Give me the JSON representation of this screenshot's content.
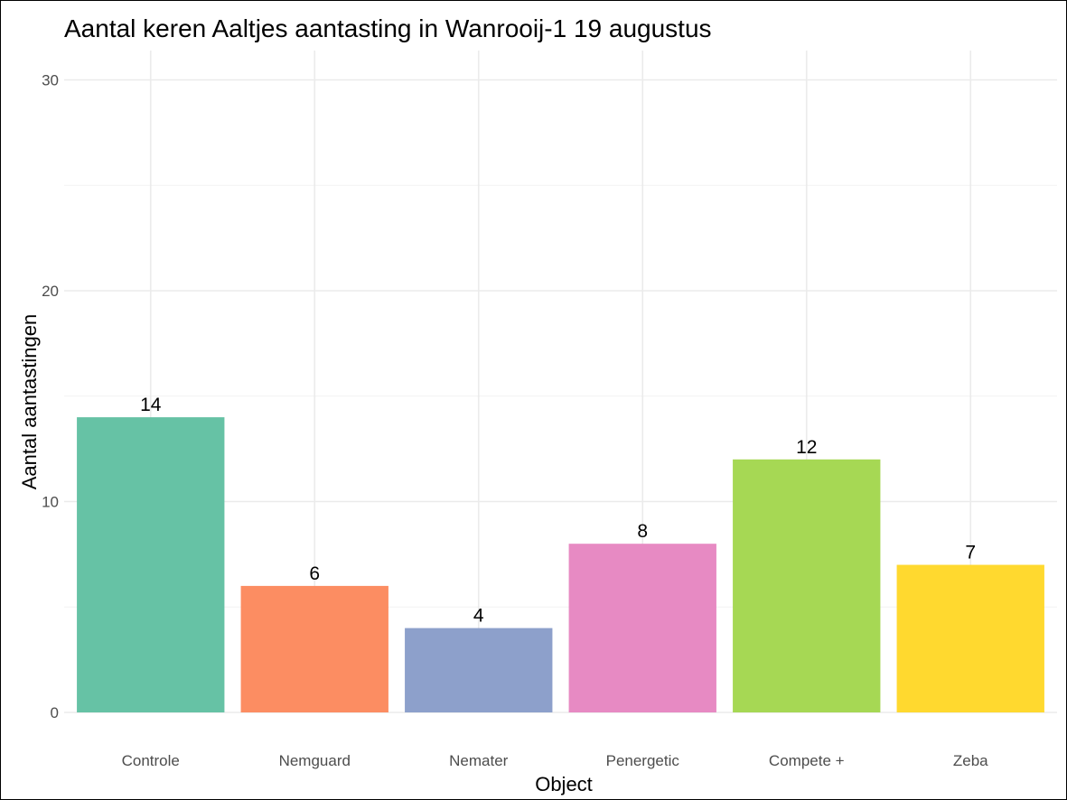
{
  "chart_data": {
    "type": "bar",
    "title": "Aantal keren Aaltjes aantasting in Wanrooij-1 19 augustus",
    "xlabel": "Object",
    "ylabel": "Aantal aantastingen",
    "categories": [
      "Controle",
      "Nemguard",
      "Nemater",
      "Penergetic",
      "Compete +",
      "Zeba"
    ],
    "values": [
      14,
      6,
      4,
      8,
      12,
      7
    ],
    "colors": [
      "#66C2A5",
      "#FC8D62",
      "#8DA0CB",
      "#E78AC3",
      "#A6D854",
      "#FFD92F"
    ],
    "ylim": [
      0,
      30
    ],
    "yticks": [
      0,
      10,
      20,
      30
    ],
    "grid": true,
    "legend": "none"
  }
}
